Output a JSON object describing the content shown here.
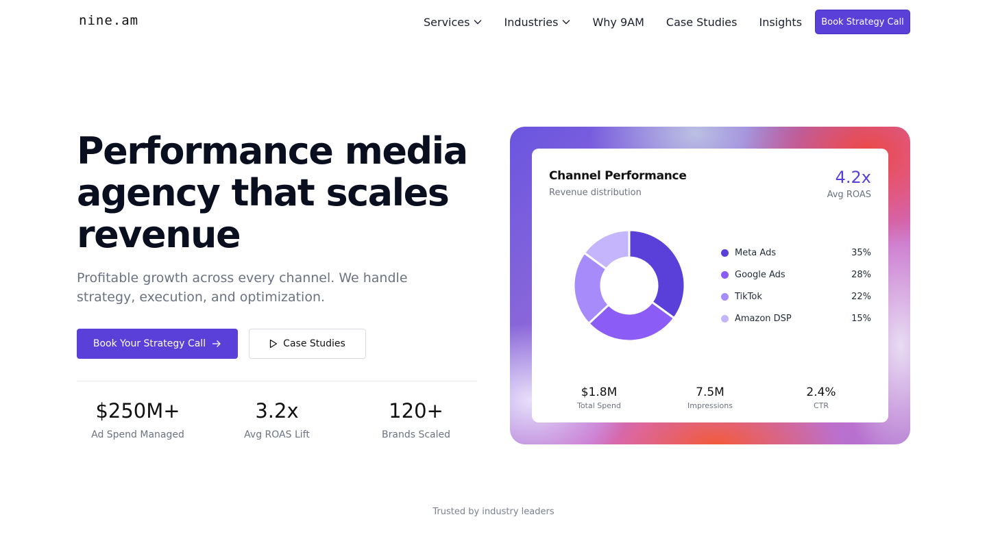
{
  "header": {
    "logo": "nine.am",
    "nav": [
      {
        "label": "Services",
        "dropdown": true
      },
      {
        "label": "Industries",
        "dropdown": true
      },
      {
        "label": "Why 9AM",
        "dropdown": false
      },
      {
        "label": "Case Studies",
        "dropdown": false
      },
      {
        "label": "Insights",
        "dropdown": false
      }
    ],
    "cta_label": "Book Strategy Call"
  },
  "hero": {
    "title_lines": [
      "Performance media",
      "agency that scales",
      "revenue"
    ],
    "subtitle": "Profitable growth across every channel. We handle strategy, execution, and optimization.",
    "primary_cta": "Book Your Strategy Call",
    "secondary_cta": "Case Studies",
    "stats": [
      {
        "value": "$250M+",
        "label": "Ad Spend Managed"
      },
      {
        "value": "3.2x",
        "label": "Avg ROAS Lift"
      },
      {
        "value": "120+",
        "label": "Brands Scaled"
      }
    ]
  },
  "card": {
    "title": "Channel Performance",
    "subtitle": "Revenue distribution",
    "roas_value": "4.2x",
    "roas_label": "Avg ROAS",
    "stats": [
      {
        "value": "$1.8M",
        "label": "Total Spend"
      },
      {
        "value": "7.5M",
        "label": "Impressions"
      },
      {
        "value": "2.4%",
        "label": "CTR"
      }
    ]
  },
  "chart_data": {
    "type": "pie",
    "variant": "donut",
    "title": "Channel Performance",
    "subtitle": "Revenue distribution",
    "categories": [
      "Meta Ads",
      "Google Ads",
      "TikTok",
      "Amazon DSP"
    ],
    "values": [
      35,
      28,
      22,
      15
    ],
    "labels": [
      "35%",
      "28%",
      "22%",
      "15%"
    ],
    "colors": [
      "#5b3fd9",
      "#8b5cf6",
      "#a78bfa",
      "#c4b5fd"
    ],
    "legend": "right"
  },
  "colors": {
    "accent": "#5b3fd9",
    "text": "#0a0f1f",
    "muted": "#6b7280"
  },
  "footer": {
    "trusted_label": "Trusted by industry leaders"
  }
}
